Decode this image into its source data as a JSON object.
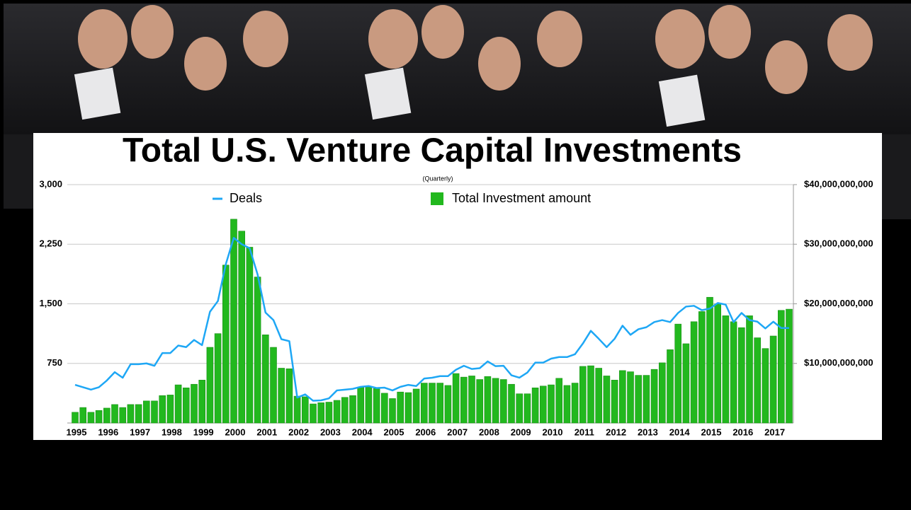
{
  "chart_data": {
    "type": "bar-line",
    "title": "Total U.S. Venture Capital Investments",
    "subtitle": "(Quarterly)",
    "categories": [
      "1995",
      null,
      null,
      null,
      "1996",
      null,
      null,
      null,
      "1997",
      null,
      null,
      null,
      "1998",
      null,
      null,
      null,
      "1999",
      null,
      null,
      null,
      "2000",
      null,
      null,
      null,
      "2001",
      null,
      null,
      null,
      "2002",
      null,
      null,
      null,
      "2003",
      null,
      null,
      null,
      "2004",
      null,
      null,
      null,
      "2005",
      null,
      null,
      null,
      "2006",
      null,
      null,
      null,
      "2007",
      null,
      null,
      null,
      "2008",
      null,
      null,
      null,
      "2009",
      null,
      null,
      null,
      "2010",
      null,
      null,
      null,
      "2011",
      null,
      null,
      null,
      "2012",
      null,
      null,
      null,
      "2013",
      null,
      null,
      null,
      "2014",
      null,
      null,
      null,
      "2015",
      null,
      null,
      null,
      "2016",
      null,
      null,
      null,
      "2017",
      null,
      null
    ],
    "series": [
      {
        "name": "Deals",
        "type": "line",
        "color": "#1ea7f5",
        "values": [
          480,
          450,
          420,
          450,
          535,
          640,
          570,
          740,
          740,
          750,
          720,
          880,
          880,
          975,
          955,
          1045,
          980,
          1400,
          1535,
          2000,
          2330,
          2250,
          2200,
          1870,
          1390,
          1295,
          1055,
          1030,
          320,
          360,
          280,
          285,
          310,
          410,
          420,
          430,
          455,
          465,
          440,
          445,
          410,
          455,
          480,
          465,
          560,
          570,
          590,
          590,
          670,
          720,
          680,
          690,
          775,
          715,
          720,
          600,
          570,
          635,
          760,
          760,
          810,
          830,
          830,
          865,
          1000,
          1160,
          1060,
          955,
          1060,
          1225,
          1110,
          1180,
          1205,
          1270,
          1295,
          1270,
          1385,
          1465,
          1475,
          1420,
          1440,
          1510,
          1490,
          1270,
          1385,
          1295,
          1275,
          1190,
          1275,
          1195,
          1195
        ]
      },
      {
        "name": "Total Investment amount",
        "type": "bar",
        "axis": "y2",
        "color": "#22b81e",
        "values": [
          1800000000.0,
          2600000000.0,
          1800000000.0,
          2100000000.0,
          2500000000.0,
          3100000000.0,
          2600000000.0,
          3100000000.0,
          3100000000.0,
          3700000000.0,
          3700000000.0,
          4600000000.0,
          4700000000.0,
          6400000000.0,
          5900000000.0,
          6500000000.0,
          7200000000.0,
          12700000000.0,
          15000000000.0,
          26500000000.0,
          34200000000.0,
          32200000000.0,
          29500000000.0,
          24500000000.0,
          14800000000.0,
          12700000000.0,
          9200000000.0,
          9100000000.0,
          4500000000.0,
          4400000000.0,
          3200000000.0,
          3400000000.0,
          3500000000.0,
          3800000000.0,
          4300000000.0,
          4600000000.0,
          6000000000.0,
          6000000000.0,
          5800000000.0,
          5000000000.0,
          4100000000.0,
          5200000000.0,
          5100000000.0,
          5700000000.0,
          6700000000.0,
          6700000000.0,
          6700000000.0,
          6300000000.0,
          8300000000.0,
          7700000000.0,
          7900000000.0,
          7300000000.0,
          7800000000.0,
          7500000000.0,
          7300000000.0,
          6500000000.0,
          4900000000.0,
          4900000000.0,
          5900000000.0,
          6200000000.0,
          6400000000.0,
          7500000000.0,
          6300000000.0,
          6700000000.0,
          9500000000.0,
          9600000000.0,
          9200000000.0,
          7900000000.0,
          7200000000.0,
          8800000000.0,
          8600000000.0,
          8000000000.0,
          8000000000.0,
          9000000000.0,
          10100000000.0,
          12300000000.0,
          16600000000.0,
          13300000000.0,
          17000000000.0,
          18700000000.0,
          21100000000.0,
          20000000000.0,
          18000000000.0,
          17000000000.0,
          16000000000.0,
          18000000000.0,
          14300000000.0,
          12500000000.0,
          14600000000.0,
          18900000000.0,
          19100000000.0
        ]
      }
    ],
    "ylim": [
      0,
      3000
    ],
    "yticks": [
      750,
      {
        "value": 1500,
        "label": "1,500"
      },
      {
        "value": 2250,
        "label": "2,250"
      },
      {
        "value": 3000,
        "label": "3,000"
      }
    ],
    "y2lim": [
      0,
      40000000000
    ],
    "y2ticks": [
      {
        "value": 10000000000,
        "label": "$10,000,000,000"
      },
      {
        "value": 20000000000,
        "label": "$20,000,000,000"
      },
      {
        "value": 30000000000,
        "label": "$30,000,000,000"
      },
      {
        "value": 40000000000,
        "label": "$40,000,000,000"
      }
    ],
    "grid": true,
    "legend": "top"
  }
}
